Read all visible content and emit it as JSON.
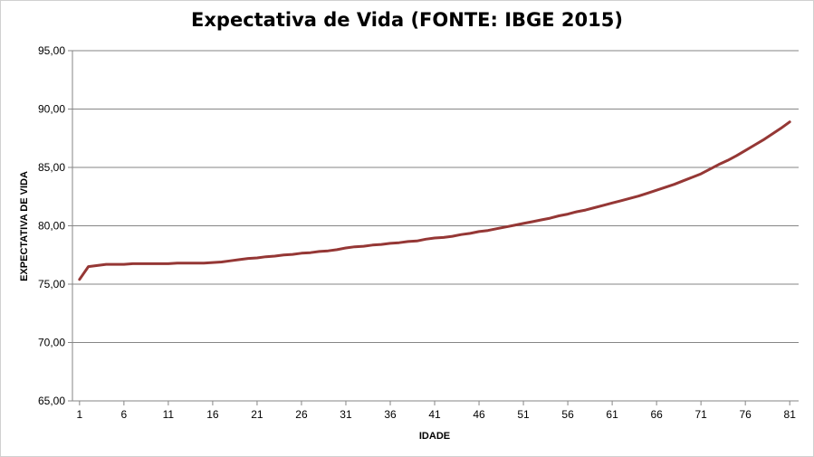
{
  "chart_data": {
    "type": "line",
    "title": "Expectativa de Vida (FONTE: IBGE 2015)",
    "xlabel": "IDADE",
    "ylabel": "EXPECTATIVA  DE VIDA",
    "ylim": [
      65,
      95
    ],
    "yticks": [
      "65,00",
      "70,00",
      "75,00",
      "80,00",
      "85,00",
      "90,00",
      "95,00"
    ],
    "ytick_values": [
      65,
      70,
      75,
      80,
      85,
      90,
      95
    ],
    "xticks": [
      1,
      6,
      11,
      16,
      21,
      26,
      31,
      36,
      41,
      46,
      51,
      56,
      61,
      66,
      71,
      76,
      81
    ],
    "grid": true,
    "legend": "none",
    "colors": {
      "series": "#953735",
      "grid": "#868686",
      "axis": "#868686"
    },
    "series": [
      {
        "x": [
          1,
          2,
          3,
          4,
          5,
          6,
          7,
          8,
          9,
          10,
          11,
          12,
          13,
          14,
          15,
          16,
          17,
          18,
          19,
          20,
          21,
          22,
          23,
          24,
          25,
          26,
          27,
          28,
          29,
          30,
          31,
          32,
          33,
          34,
          35,
          36,
          37,
          38,
          39,
          40,
          41,
          42,
          43,
          44,
          45,
          46,
          47,
          48,
          49,
          50,
          51,
          52,
          53,
          54,
          55,
          56,
          57,
          58,
          59,
          60,
          61,
          62,
          63,
          64,
          65,
          66,
          67,
          68,
          69,
          70,
          71,
          72,
          73,
          74,
          75,
          76,
          77,
          78,
          79,
          80,
          81
        ],
        "values": [
          75.4,
          76.5,
          76.6,
          76.7,
          76.7,
          76.7,
          76.75,
          76.75,
          76.75,
          76.75,
          76.75,
          76.8,
          76.8,
          76.8,
          76.8,
          76.85,
          76.9,
          77.0,
          77.1,
          77.2,
          77.25,
          77.35,
          77.4,
          77.5,
          77.55,
          77.65,
          77.7,
          77.8,
          77.85,
          77.95,
          78.1,
          78.2,
          78.25,
          78.35,
          78.4,
          78.5,
          78.55,
          78.65,
          78.7,
          78.85,
          78.95,
          79.0,
          79.1,
          79.25,
          79.35,
          79.5,
          79.6,
          79.75,
          79.9,
          80.05,
          80.2,
          80.35,
          80.5,
          80.65,
          80.85,
          81.0,
          81.2,
          81.35,
          81.55,
          81.75,
          81.95,
          82.15,
          82.35,
          82.55,
          82.8,
          83.05,
          83.3,
          83.55,
          83.85,
          84.15,
          84.45,
          84.85,
          85.25,
          85.6,
          86.0,
          86.45,
          86.9,
          87.35,
          87.85,
          88.35,
          88.9
        ]
      }
    ]
  }
}
